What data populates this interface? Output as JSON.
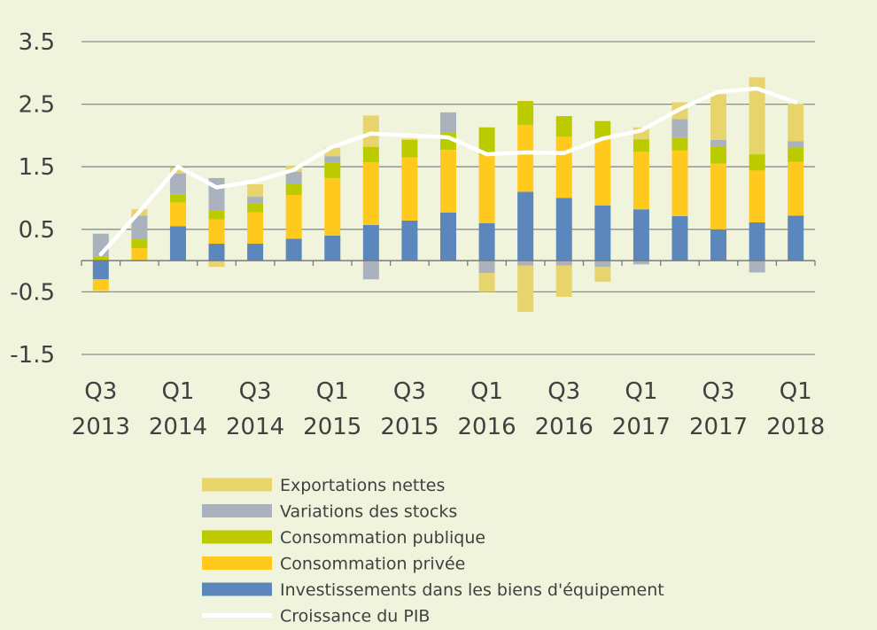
{
  "chart_data": {
    "type": "bar",
    "stacked": true,
    "categories": [
      "Q3 2013",
      "Q4 2013",
      "Q1 2014",
      "Q2 2014",
      "Q3 2014",
      "Q4 2014",
      "Q1 2015",
      "Q2 2015",
      "Q3 2015",
      "Q4 2015",
      "Q1 2016",
      "Q2 2016",
      "Q3 2016",
      "Q4 2016",
      "Q1 2017",
      "Q2 2017",
      "Q3 2017",
      "Q4 2017",
      "Q1 2018"
    ],
    "x_tick_labels": [
      {
        "index": 0,
        "line1": "Q3",
        "line2": "2013"
      },
      {
        "index": 2,
        "line1": "Q1",
        "line2": "2014"
      },
      {
        "index": 4,
        "line1": "Q3",
        "line2": "2014"
      },
      {
        "index": 6,
        "line1": "Q1",
        "line2": "2015"
      },
      {
        "index": 8,
        "line1": "Q3",
        "line2": "2015"
      },
      {
        "index": 10,
        "line1": "Q1",
        "line2": "2016"
      },
      {
        "index": 12,
        "line1": "Q3",
        "line2": "2016"
      },
      {
        "index": 14,
        "line1": "Q1",
        "line2": "2017"
      },
      {
        "index": 16,
        "line1": "Q3",
        "line2": "2017"
      },
      {
        "index": 18,
        "line1": "Q1",
        "line2": "2018"
      }
    ],
    "y_ticks": [
      "3.5",
      "2.5",
      "1.5",
      "0.5",
      "-0.5",
      "-1.5"
    ],
    "ylim": [
      -1.5,
      3.5
    ],
    "grid": true,
    "legend_position": "bottom",
    "series": [
      {
        "name": "Investissements dans les biens d'équipement",
        "color": "#5b87bd",
        "values": [
          -0.3,
          0.0,
          0.55,
          0.27,
          0.27,
          0.35,
          0.4,
          0.57,
          0.64,
          0.77,
          0.6,
          1.1,
          1.0,
          0.88,
          0.82,
          0.71,
          0.5,
          0.61,
          0.72
        ]
      },
      {
        "name": "Consommation privée",
        "color": "#ffc91e",
        "values": [
          -0.17,
          0.2,
          0.38,
          0.39,
          0.5,
          0.7,
          0.92,
          1.0,
          1.01,
          1.0,
          1.1,
          1.07,
          0.98,
          1.07,
          0.92,
          1.05,
          1.05,
          0.83,
          0.86
        ]
      },
      {
        "name": "Consommation publique",
        "color": "#bccb00",
        "values": [
          0.07,
          0.14,
          0.13,
          0.14,
          0.15,
          0.17,
          0.25,
          0.25,
          0.28,
          0.28,
          0.43,
          0.38,
          0.33,
          0.28,
          0.2,
          0.2,
          0.28,
          0.26,
          0.23
        ]
      },
      {
        "name": "Variations des stocks",
        "color": "#a9b2bd",
        "values": [
          0.36,
          0.38,
          0.33,
          0.52,
          0.1,
          0.2,
          0.1,
          -0.3,
          0.0,
          0.32,
          -0.2,
          -0.08,
          -0.08,
          -0.1,
          -0.06,
          0.3,
          0.1,
          -0.19,
          0.1
        ]
      },
      {
        "name": "Exportations nettes",
        "color": "#e8d46c",
        "values": [
          -0.02,
          0.1,
          0.1,
          -0.1,
          0.2,
          0.1,
          0.13,
          0.5,
          0.02,
          0.0,
          -0.3,
          -0.74,
          -0.5,
          -0.24,
          0.19,
          0.27,
          0.73,
          1.23,
          0.6
        ]
      },
      {
        "name": "Croissance du PIB",
        "color": "#ffffff",
        "type": "line",
        "values": [
          0.1,
          0.78,
          1.5,
          1.17,
          1.27,
          1.45,
          1.82,
          2.03,
          2.0,
          1.97,
          1.7,
          1.73,
          1.72,
          1.95,
          2.08,
          2.42,
          2.7,
          2.75,
          2.53
        ]
      }
    ],
    "legend_order": [
      "Exportations nettes",
      "Variations des stocks",
      "Consommation publique",
      "Consommation privée",
      "Investissements dans les biens d'équipement",
      "Croissance du PIB"
    ]
  }
}
